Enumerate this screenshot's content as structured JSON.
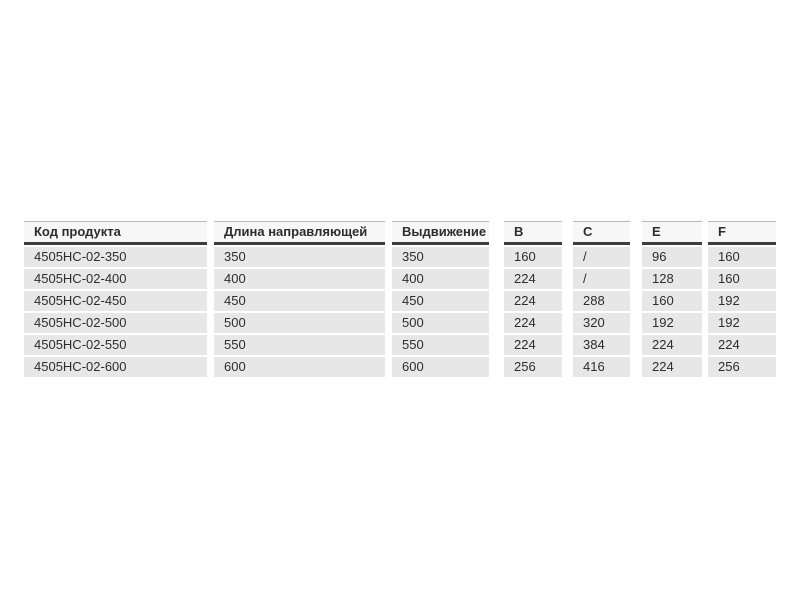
{
  "page": {
    "background": "#ffffff"
  },
  "table": {
    "columns": [
      {
        "label": "Код продукта"
      },
      {
        "label": "Длина направляющей"
      },
      {
        "label": "Выдвижение"
      },
      {
        "label": "B"
      },
      {
        "label": "C"
      },
      {
        "label": "E"
      },
      {
        "label": "F"
      }
    ],
    "rows": [
      [
        "4505HC-02-350",
        "350",
        "350",
        "160",
        "/",
        "96",
        "160"
      ],
      [
        "4505HC-02-400",
        "400",
        "400",
        "224",
        "/",
        "128",
        "160"
      ],
      [
        "4505HC-02-450",
        "450",
        "450",
        "224",
        "288",
        "160",
        "192"
      ],
      [
        "4505HC-02-500",
        "500",
        "500",
        "224",
        "320",
        "192",
        "192"
      ],
      [
        "4505HC-02-550",
        "550",
        "550",
        "224",
        "384",
        "224",
        "224"
      ],
      [
        "4505HC-02-600",
        "600",
        "600",
        "256",
        "416",
        "224",
        "256"
      ]
    ],
    "colors": {
      "row_background": "#e7e7e7",
      "header_background": "#f7f7f7",
      "header_rule": "#3d3d3d",
      "header_top_rule": "#b9b9b9",
      "text": "#2d2d2d"
    }
  }
}
